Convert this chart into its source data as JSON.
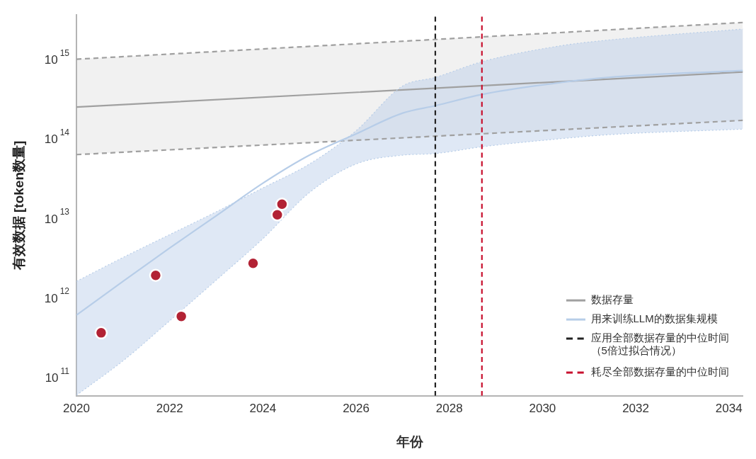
{
  "chart_data": {
    "type": "line",
    "xlabel": "年份",
    "ylabel": "有效数据 [token数量]",
    "xlim": [
      2020,
      2034.3
    ],
    "xticks": [
      2020,
      2022,
      2024,
      2026,
      2028,
      2030,
      2032,
      2034
    ],
    "ylim": [
      58000000000.0,
      3600000000000000.0
    ],
    "yticks": [
      {
        "value": 100000000000.0,
        "label": "10$^{11}$"
      },
      {
        "value": 1000000000000.0,
        "label": "10$^{12}$"
      },
      {
        "value": 10000000000000.0,
        "label": "10$^{13}$"
      },
      {
        "value": 100000000000000.0,
        "label": "10$^{14}$"
      },
      {
        "value": 1000000000000000.0,
        "label": "10$^{15}$"
      }
    ],
    "log": "y",
    "grid": false,
    "legend": "bottom right",
    "series": [
      {
        "name": "数据存量",
        "type": "line",
        "color": "#a0a0a0",
        "line_style": "solid",
        "x": [
          2020,
          2034.3
        ],
        "values": [
          250000000000000.0,
          690000000000000.0
        ],
        "lower": [
          63000000000000.0,
          170000000000000.0
        ],
        "upper": [
          1000000000000000.0,
          2900000000000000.0
        ]
      },
      {
        "color": "#a0a0a0",
        "line_style": "dashed",
        "x": [
          2020,
          2034.3
        ],
        "values": [
          1000000000000000.0,
          2900000000000000.0
        ]
      },
      {
        "color": "#a0a0a0",
        "line_style": "dashed",
        "x": [
          2020,
          2034.3
        ],
        "values": [
          63000000000000.0,
          170000000000000.0
        ]
      },
      {
        "name": "用来训练LLM的数据集规模",
        "type": "line",
        "color": "#b7cde8",
        "line_style": "solid",
        "x": [
          2020,
          2021,
          2022,
          2023,
          2024,
          2025,
          2026,
          2027,
          2027.7,
          2028.7,
          2030.4,
          2031.4,
          2034.3
        ],
        "values": [
          600000000000.0,
          1600000000000.0,
          4200000000000.0,
          10700000000000.0,
          27500000000000.0,
          62000000000000.0,
          115000000000000.0,
          210000000000000.0,
          260000000000000.0,
          360000000000000.0,
          510000000000000.0,
          590000000000000.0,
          720000000000000.0
        ],
        "lower": [
          59000000000.0,
          160000000000.0,
          510000000000.0,
          1660000000000.0,
          5500000000000.0,
          21000000000000.0,
          48000000000000.0,
          62000000000000.0,
          65000000000000.0,
          79000000000000.0,
          100000000000000.0,
          112000000000000.0,
          132000000000000.0
        ],
        "upper": [
          1600000000000.0,
          3200000000000.0,
          6200000000000.0,
          12000000000000.0,
          24000000000000.0,
          48000000000000.0,
          126000000000000.0,
          460000000000000.0,
          590000000000000.0,
          930000000000000.0,
          1480000000000000.0,
          1740000000000000.0,
          2400000000000000.0
        ]
      },
      {
        "color": "#b7cde8",
        "line_style": "dotted",
        "x": [
          2020,
          2021,
          2022,
          2023,
          2024,
          2025,
          2026,
          2027,
          2027.7,
          2028.7,
          2030.4,
          2031.4,
          2034.3
        ],
        "values": [
          1600000000000.0,
          3200000000000.0,
          6200000000000.0,
          12000000000000.0,
          24000000000000.0,
          48000000000000.0,
          126000000000000.0,
          460000000000000.0,
          590000000000000.0,
          930000000000000.0,
          1480000000000000.0,
          1740000000000000.0,
          2400000000000000.0
        ]
      },
      {
        "color": "#b7cde8",
        "line_style": "dotted",
        "x": [
          2020,
          2021,
          2022,
          2023,
          2024,
          2025,
          2026,
          2027,
          2027.7,
          2028.7,
          2030.4,
          2031.4,
          2034.3
        ],
        "values": [
          59000000000.0,
          160000000000.0,
          510000000000.0,
          1660000000000.0,
          5500000000000.0,
          21000000000000.0,
          48000000000000.0,
          62000000000000.0,
          65000000000000.0,
          79000000000000.0,
          100000000000000.0,
          112000000000000.0,
          132000000000000.0
        ]
      },
      {
        "name": "应用全部数据存量的中位时间（5倍过拟合情况）",
        "type": "line",
        "color": "#222222",
        "line_style": "dashed",
        "x": [
          2027.7,
          2027.7
        ],
        "values": [
          58000000000.0,
          3600000000000000.0
        ]
      },
      {
        "name": "耗尽全部数据存量的中位时间",
        "type": "line",
        "color": "#c8102e",
        "line_style": "dashed",
        "x": [
          2028.7,
          2028.7
        ],
        "values": [
          58000000000.0,
          3600000000000000.0
        ]
      },
      {
        "type": "scatter",
        "color": "#b22234",
        "marker": "circle",
        "x": [
          2020.53,
          2021.7,
          2022.25,
          2023.79,
          2024.31,
          2024.41
        ],
        "values": [
          360000000000.0,
          1900000000000.0,
          580000000000.0,
          2700000000000.0,
          11000000000000.0,
          15000000000000.0
        ]
      }
    ]
  }
}
